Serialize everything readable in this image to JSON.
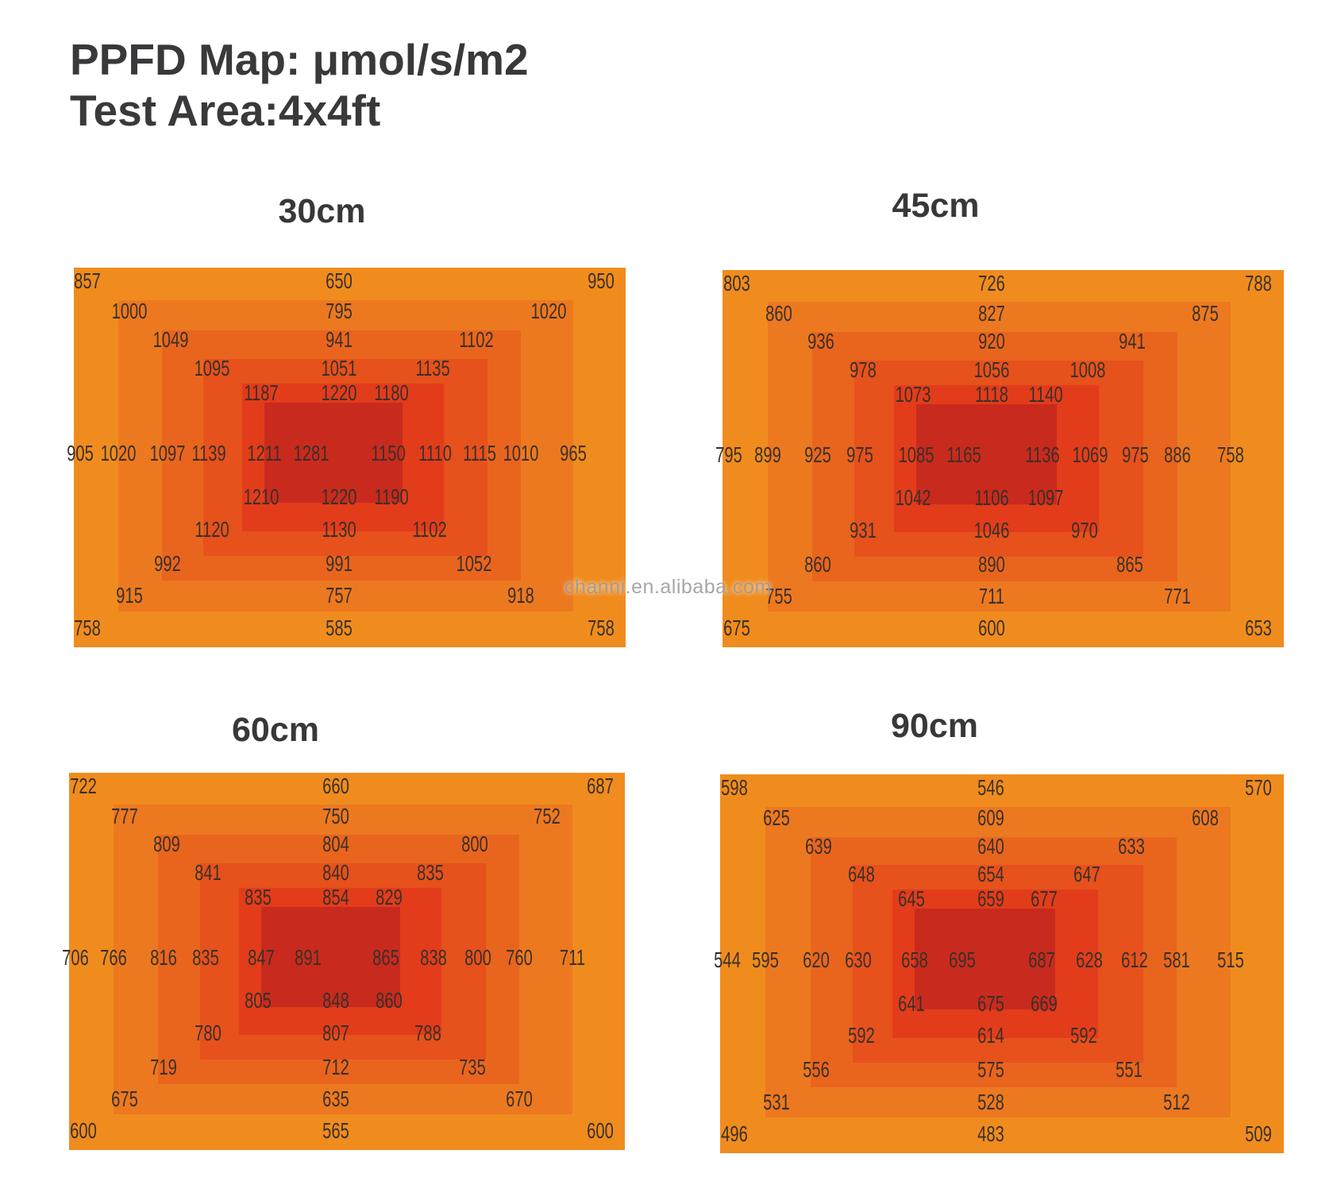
{
  "title": {
    "line1": "PPFD Map: μmol/s/m2",
    "line2": "Test Area:4x4ft"
  },
  "watermark": "channi.en.alibaba.com",
  "palette": [
    "#F08C1E",
    "#EC7920",
    "#E9651E",
    "#E6511C",
    "#E23C1B",
    "#C92A1E"
  ],
  "value_color": "#3a3028",
  "chart_data": [
    {
      "type": "heatmap",
      "title": "30cm",
      "unit": "μmol/s/m2",
      "test_area": "4x4ft",
      "rows": [
        [
          857,
          650,
          950
        ],
        [
          1000,
          795,
          1020
        ],
        [
          1049,
          941,
          1102
        ],
        [
          1095,
          1051,
          1135
        ],
        [
          1187,
          1220,
          1180
        ],
        [
          905,
          1020,
          1097,
          1139,
          1211,
          1281,
          1150,
          1110,
          1115,
          1010,
          965
        ],
        [
          1210,
          1220,
          1190
        ],
        [
          1120,
          1130,
          1102
        ],
        [
          992,
          991,
          1052
        ],
        [
          915,
          757,
          918
        ],
        [
          758,
          585,
          758
        ]
      ]
    },
    {
      "type": "heatmap",
      "title": "45cm",
      "unit": "μmol/s/m2",
      "test_area": "4x4ft",
      "rows": [
        [
          803,
          726,
          788
        ],
        [
          860,
          827,
          875
        ],
        [
          936,
          920,
          941
        ],
        [
          978,
          1056,
          1008
        ],
        [
          1073,
          1118,
          1140
        ],
        [
          795,
          899,
          925,
          975,
          1085,
          1165,
          1136,
          1069,
          975,
          886,
          758
        ],
        [
          1042,
          1106,
          1097
        ],
        [
          931,
          1046,
          970
        ],
        [
          860,
          890,
          865
        ],
        [
          755,
          711,
          771
        ],
        [
          675,
          600,
          653
        ]
      ]
    },
    {
      "type": "heatmap",
      "title": "60cm",
      "unit": "μmol/s/m2",
      "test_area": "4x4ft",
      "rows": [
        [
          722,
          660,
          687
        ],
        [
          777,
          750,
          752
        ],
        [
          809,
          804,
          800
        ],
        [
          841,
          840,
          835
        ],
        [
          835,
          854,
          829
        ],
        [
          706,
          766,
          816,
          835,
          847,
          891,
          865,
          838,
          800,
          760,
          711
        ],
        [
          805,
          848,
          860
        ],
        [
          780,
          807,
          788
        ],
        [
          719,
          712,
          735
        ],
        [
          675,
          635,
          670
        ],
        [
          600,
          565,
          600
        ]
      ]
    },
    {
      "type": "heatmap",
      "title": "90cm",
      "unit": "μmol/s/m2",
      "test_area": "4x4ft",
      "rows": [
        [
          598,
          546,
          570
        ],
        [
          625,
          609,
          608
        ],
        [
          639,
          640,
          633
        ],
        [
          648,
          654,
          647
        ],
        [
          645,
          659,
          677
        ],
        [
          544,
          595,
          620,
          630,
          658,
          695,
          687,
          628,
          612,
          581,
          515
        ],
        [
          641,
          675,
          669
        ],
        [
          592,
          614,
          592
        ],
        [
          556,
          575,
          551
        ],
        [
          531,
          528,
          512
        ],
        [
          496,
          483,
          509
        ]
      ]
    }
  ]
}
